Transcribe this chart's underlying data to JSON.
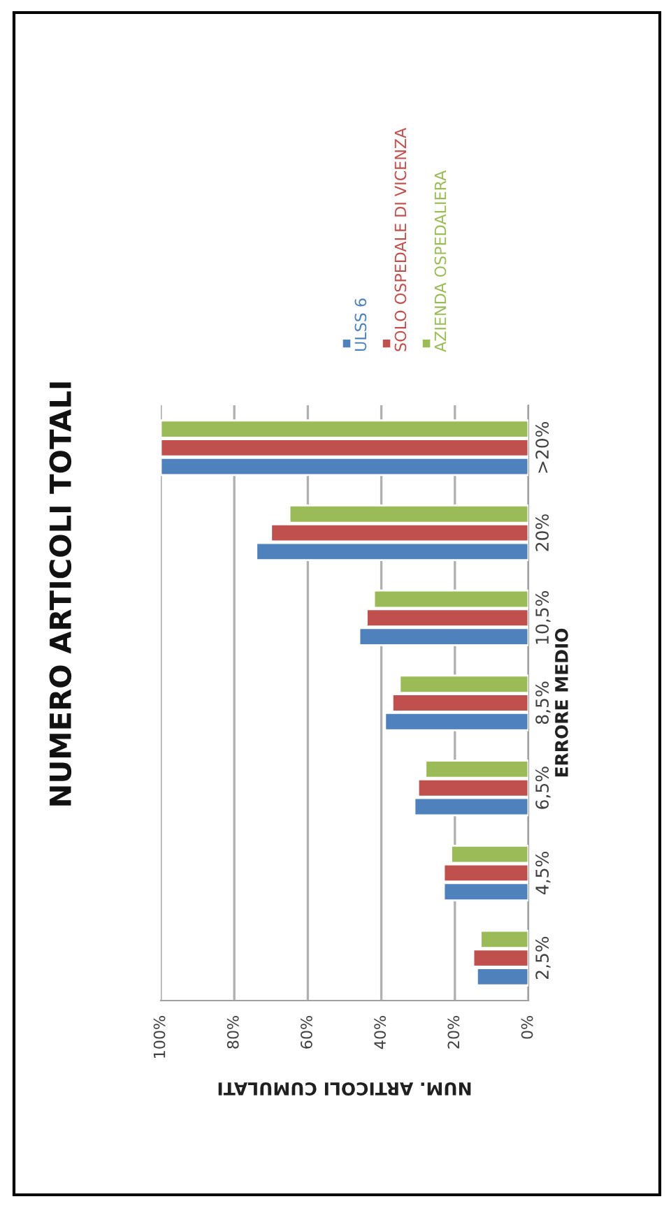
{
  "chart_data": {
    "type": "bar",
    "orientation": "horizontal",
    "title": "NUMERO ARTICOLI TOTALI",
    "xlabel": "NUM. ARTICOLI CUMULATI",
    "ylabel": "ERRORE MEDIO",
    "categories": [
      ">20%",
      "20%",
      "10,5%",
      "8,5%",
      "6,5%",
      "4,5%",
      "2,5%"
    ],
    "series": [
      {
        "name": "ULSS 6",
        "color": "#4f81bd",
        "values": [
          100,
          74,
          46,
          39,
          31,
          23,
          14
        ]
      },
      {
        "name": "SOLO OSPEDALE DI VICENZA",
        "color": "#c0504d",
        "values": [
          100,
          70,
          44,
          37,
          30,
          23,
          15
        ]
      },
      {
        "name": "AZIENDA OSPEDALIERA",
        "color": "#9bbb59",
        "values": [
          100,
          65,
          42,
          35,
          28,
          21,
          13
        ]
      }
    ],
    "xlim": [
      100,
      0
    ],
    "xticks": [
      {
        "value": 0,
        "label": "0%"
      },
      {
        "value": 20,
        "label": "20%"
      },
      {
        "value": 40,
        "label": "40%"
      },
      {
        "value": 60,
        "label": "60%"
      },
      {
        "value": 80,
        "label": "80%"
      },
      {
        "value": 100,
        "label": "100%"
      }
    ],
    "grid": "x",
    "legend": "top"
  }
}
